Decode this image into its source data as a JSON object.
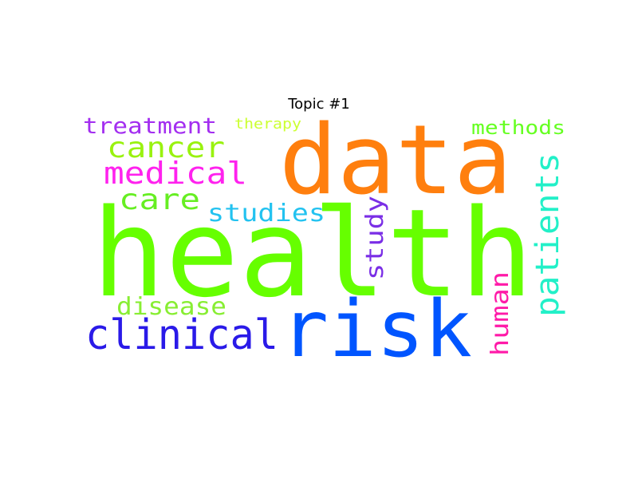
{
  "title": "Topic #1",
  "words": [
    {
      "id": "health",
      "text": "health",
      "color": "#66ff00"
    },
    {
      "id": "data",
      "text": "data",
      "color": "#ff7f0e"
    },
    {
      "id": "risk",
      "text": "risk",
      "color": "#0055ff"
    },
    {
      "id": "clinical",
      "text": "clinical",
      "color": "#2a1ae8"
    },
    {
      "id": "patients",
      "text": "patients",
      "color": "#22f0c8"
    },
    {
      "id": "medical",
      "text": "medical",
      "color": "#ff22ee"
    },
    {
      "id": "cancer",
      "text": "cancer",
      "color": "#99f20f"
    },
    {
      "id": "care",
      "text": "care",
      "color": "#66ee22"
    },
    {
      "id": "studies",
      "text": "studies",
      "color": "#22c2f0"
    },
    {
      "id": "study",
      "text": "study",
      "color": "#7a2ee6"
    },
    {
      "id": "human",
      "text": "human",
      "color": "#ff1aa8"
    },
    {
      "id": "disease",
      "text": "disease",
      "color": "#88ee33"
    },
    {
      "id": "treatment",
      "text": "treatment",
      "color": "#a32ef0"
    },
    {
      "id": "methods",
      "text": "methods",
      "color": "#66ff22"
    },
    {
      "id": "therapy",
      "text": "therapy",
      "color": "#ccff33"
    }
  ]
}
